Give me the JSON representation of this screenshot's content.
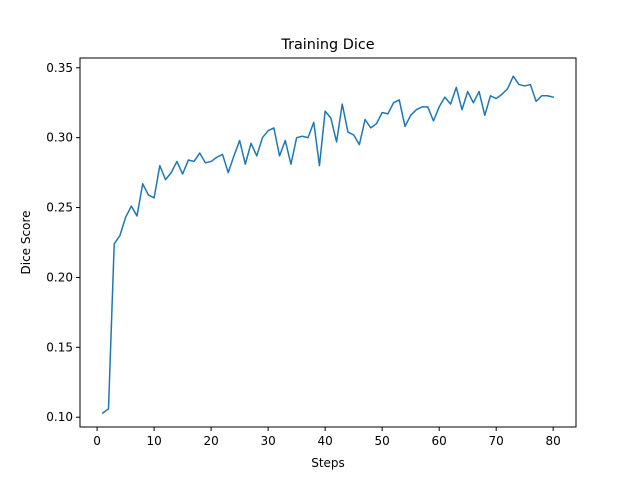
{
  "chart_data": {
    "type": "line",
    "title": "Training Dice",
    "xlabel": "Steps",
    "ylabel": "Dice Score",
    "xlim": [
      -3,
      84
    ],
    "ylim": [
      0.093,
      0.357
    ],
    "xticks": [
      0,
      10,
      20,
      30,
      40,
      50,
      60,
      70,
      80
    ],
    "xtick_labels": [
      "0",
      "10",
      "20",
      "30",
      "40",
      "50",
      "60",
      "70",
      "80"
    ],
    "yticks": [
      0.1,
      0.15,
      0.2,
      0.25,
      0.3,
      0.35
    ],
    "ytick_labels": [
      "0.10",
      "0.15",
      "0.20",
      "0.25",
      "0.30",
      "0.35"
    ],
    "grid": false,
    "series": [
      {
        "color": "#1f77b4",
        "x": [
          1,
          2,
          3,
          4,
          5,
          6,
          7,
          8,
          9,
          10,
          11,
          12,
          13,
          14,
          15,
          16,
          17,
          18,
          19,
          20,
          21,
          22,
          23,
          24,
          25,
          26,
          27,
          28,
          29,
          30,
          31,
          32,
          33,
          34,
          35,
          36,
          37,
          38,
          39,
          40,
          41,
          42,
          43,
          44,
          45,
          46,
          47,
          48,
          49,
          50,
          51,
          52,
          53,
          54,
          55,
          56,
          57,
          58,
          59,
          60,
          61,
          62,
          63,
          64,
          65,
          66,
          67,
          68,
          69,
          70,
          71,
          72,
          73,
          74,
          75,
          76,
          77,
          78,
          79,
          80
        ],
        "y": [
          0.103,
          0.106,
          0.224,
          0.23,
          0.243,
          0.251,
          0.244,
          0.267,
          0.259,
          0.257,
          0.28,
          0.27,
          0.275,
          0.283,
          0.274,
          0.284,
          0.283,
          0.289,
          0.282,
          0.283,
          0.286,
          0.288,
          0.275,
          0.287,
          0.298,
          0.281,
          0.296,
          0.287,
          0.3,
          0.305,
          0.307,
          0.287,
          0.298,
          0.281,
          0.3,
          0.301,
          0.3,
          0.311,
          0.28,
          0.319,
          0.314,
          0.297,
          0.324,
          0.304,
          0.302,
          0.295,
          0.313,
          0.307,
          0.31,
          0.318,
          0.317,
          0.325,
          0.327,
          0.308,
          0.316,
          0.32,
          0.322,
          0.322,
          0.312,
          0.322,
          0.329,
          0.324,
          0.336,
          0.32,
          0.333,
          0.325,
          0.333,
          0.316,
          0.33,
          0.328,
          0.331,
          0.335,
          0.344,
          0.338,
          0.337,
          0.338,
          0.326,
          0.33,
          0.33,
          0.329
        ]
      }
    ]
  }
}
